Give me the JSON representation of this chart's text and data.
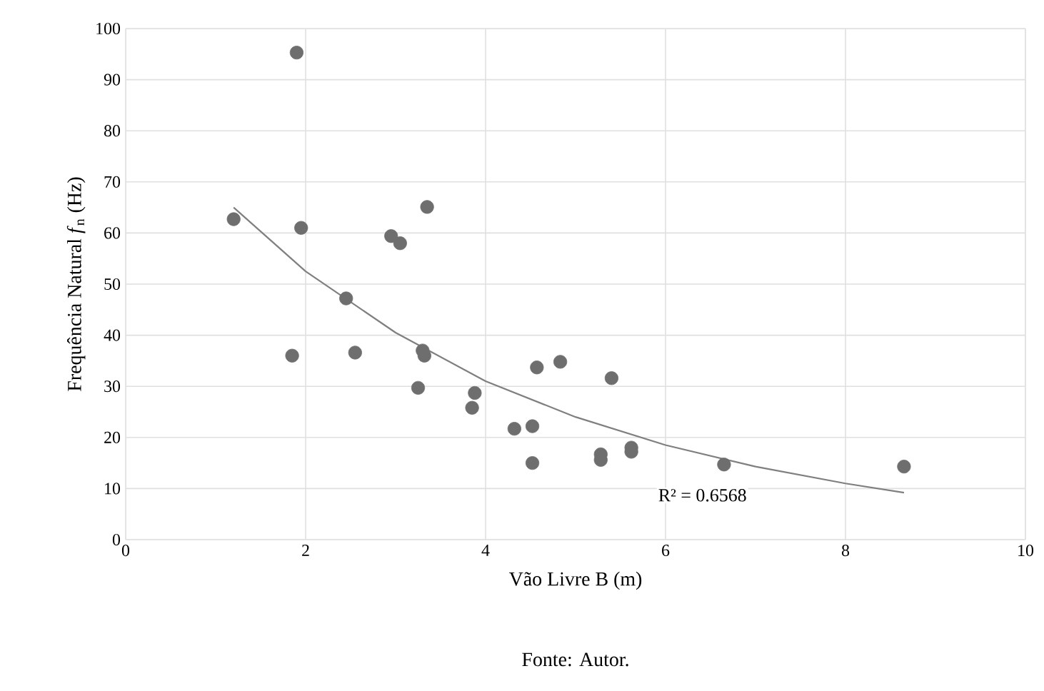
{
  "chart_data": {
    "type": "scatter",
    "xlabel": "Vão Livre B (m)",
    "ylabel": "Frequência Natural *f*$_{n}$ (Hz)",
    "xlim": [
      0,
      10
    ],
    "ylim": [
      0,
      100
    ],
    "xticks": [
      0,
      2,
      4,
      6,
      8,
      10
    ],
    "yticks": [
      0,
      10,
      20,
      30,
      40,
      50,
      60,
      70,
      80,
      90,
      100
    ],
    "grid": true,
    "marker": "circle",
    "series": [
      {
        "color": "#6e6e6e",
        "x": [
          1.2,
          1.9,
          1.85,
          1.95,
          2.45,
          2.55,
          2.95,
          3.05,
          3.35,
          3.3,
          3.32,
          3.25,
          3.85,
          3.88,
          4.32,
          4.52,
          4.52,
          4.57,
          4.83,
          5.28,
          5.28,
          5.4,
          5.62,
          5.62,
          6.65,
          8.65
        ],
        "values": [
          62.7,
          95.3,
          36,
          61,
          47.2,
          36.6,
          59.4,
          58,
          65.1,
          37,
          36,
          29.7,
          25.8,
          28.7,
          21.7,
          22.2,
          15,
          33.7,
          34.8,
          16.7,
          15.6,
          31.6,
          18,
          17.2,
          14.7,
          14.3
        ]
      },
      {
        "type": "line",
        "marker": "none",
        "color": "#7f7f7f",
        "x": [
          1.2,
          2,
          3,
          4,
          5,
          6,
          7,
          8,
          8.65
        ],
        "values": [
          65,
          52.5,
          40.5,
          31,
          24,
          18.5,
          14.3,
          11,
          9.2
        ]
      }
    ],
    "annotations": [
      "R² = 0.6568",
      "Fonte: Autor."
    ]
  }
}
